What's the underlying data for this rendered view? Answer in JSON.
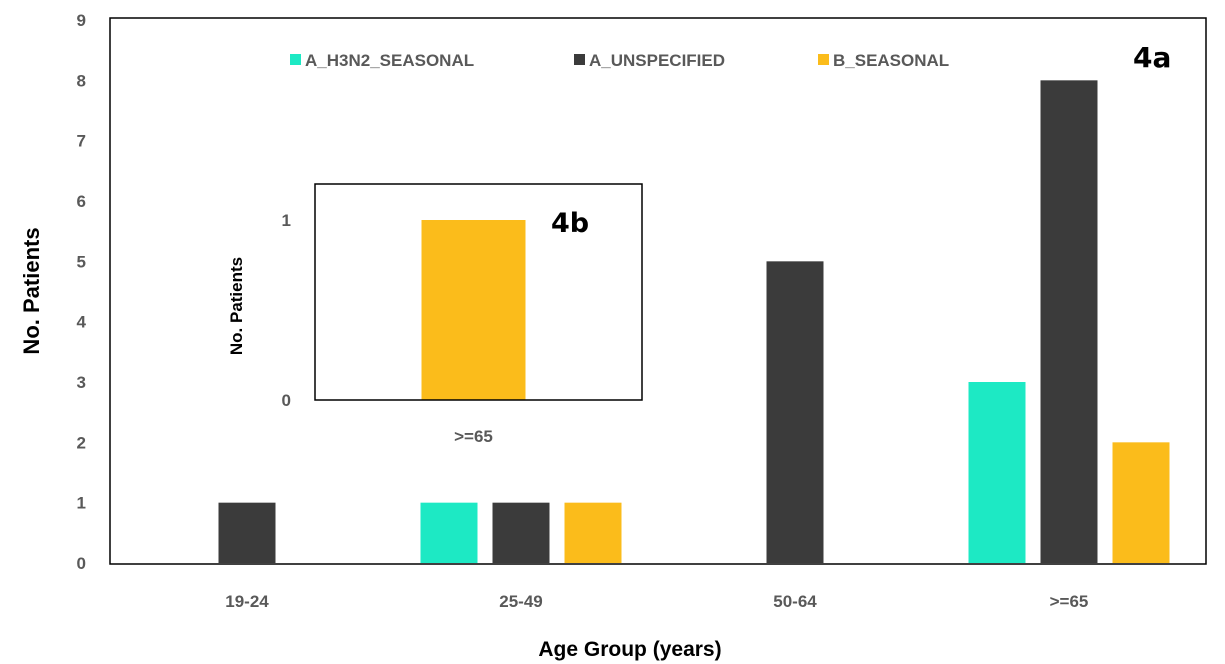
{
  "chart_data": [
    {
      "type": "bar",
      "panel_label": "4a",
      "categories": [
        "19-24",
        "25-49",
        "50-64",
        ">=65"
      ],
      "series": [
        {
          "name": "A_H3N2_SEASONAL",
          "color": "#1de9c4",
          "values": [
            0,
            1,
            0,
            3
          ]
        },
        {
          "name": "A_UNSPECIFIED",
          "color": "#3b3b3b",
          "values": [
            1,
            1,
            5,
            8
          ]
        },
        {
          "name": "B_SEASONAL",
          "color": "#fbbc1b",
          "values": [
            0,
            1,
            0,
            2
          ]
        }
      ],
      "xlabel": "Age Group (years)",
      "ylabel": "No. Patients",
      "ylim": [
        0,
        9
      ],
      "yticks": [
        "0",
        "1",
        "2",
        "3",
        "4",
        "5",
        "6",
        "7",
        "8",
        "9"
      ],
      "grid": false,
      "legend": "top"
    },
    {
      "type": "bar",
      "panel_label": "4b",
      "categories": [
        ">=65"
      ],
      "series": [
        {
          "name": "B_SEASONAL",
          "color": "#fbbc1b",
          "values": [
            1
          ]
        }
      ],
      "xlabel": "",
      "ylabel": "No. Patients",
      "ylim": [
        0,
        1
      ],
      "yticks": [
        "0",
        "1"
      ],
      "grid": false,
      "legend": "none"
    }
  ]
}
